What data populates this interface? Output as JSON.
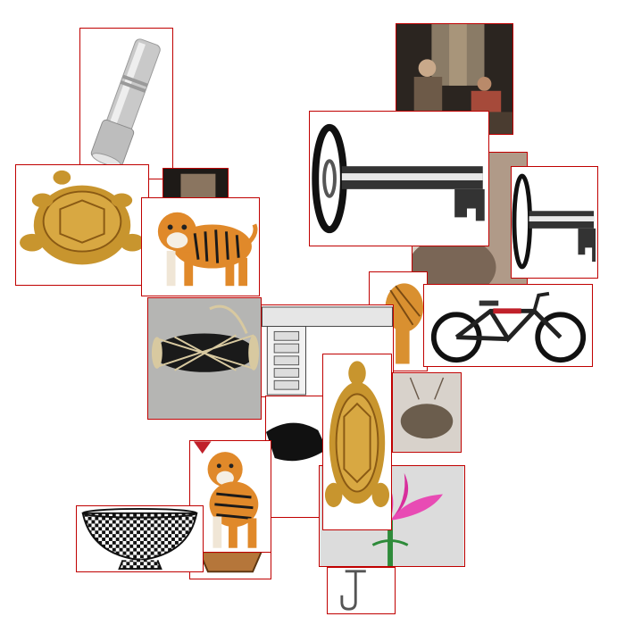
{
  "collage": {
    "background": "#ffffff",
    "border_color": "#c00000",
    "images": [
      {
        "id": "flashlight",
        "subject": "flashlight-icon"
      },
      {
        "id": "old-couple",
        "subject": "people-photo-icon"
      },
      {
        "id": "turtle",
        "subject": "turtle-figurine-icon"
      },
      {
        "id": "tiger",
        "subject": "tiger-icon"
      },
      {
        "id": "key",
        "subject": "key-icon"
      },
      {
        "id": "drum",
        "subject": "drum-icon"
      },
      {
        "id": "bicycle",
        "subject": "bicycle-icon"
      },
      {
        "id": "gong",
        "subject": "gong-icon"
      },
      {
        "id": "basket",
        "subject": "basket-icon"
      },
      {
        "id": "lotus",
        "subject": "lotus-flower-icon"
      },
      {
        "id": "hook",
        "subject": "hook-icon"
      },
      {
        "id": "pot",
        "subject": "pot-icon"
      }
    ]
  }
}
